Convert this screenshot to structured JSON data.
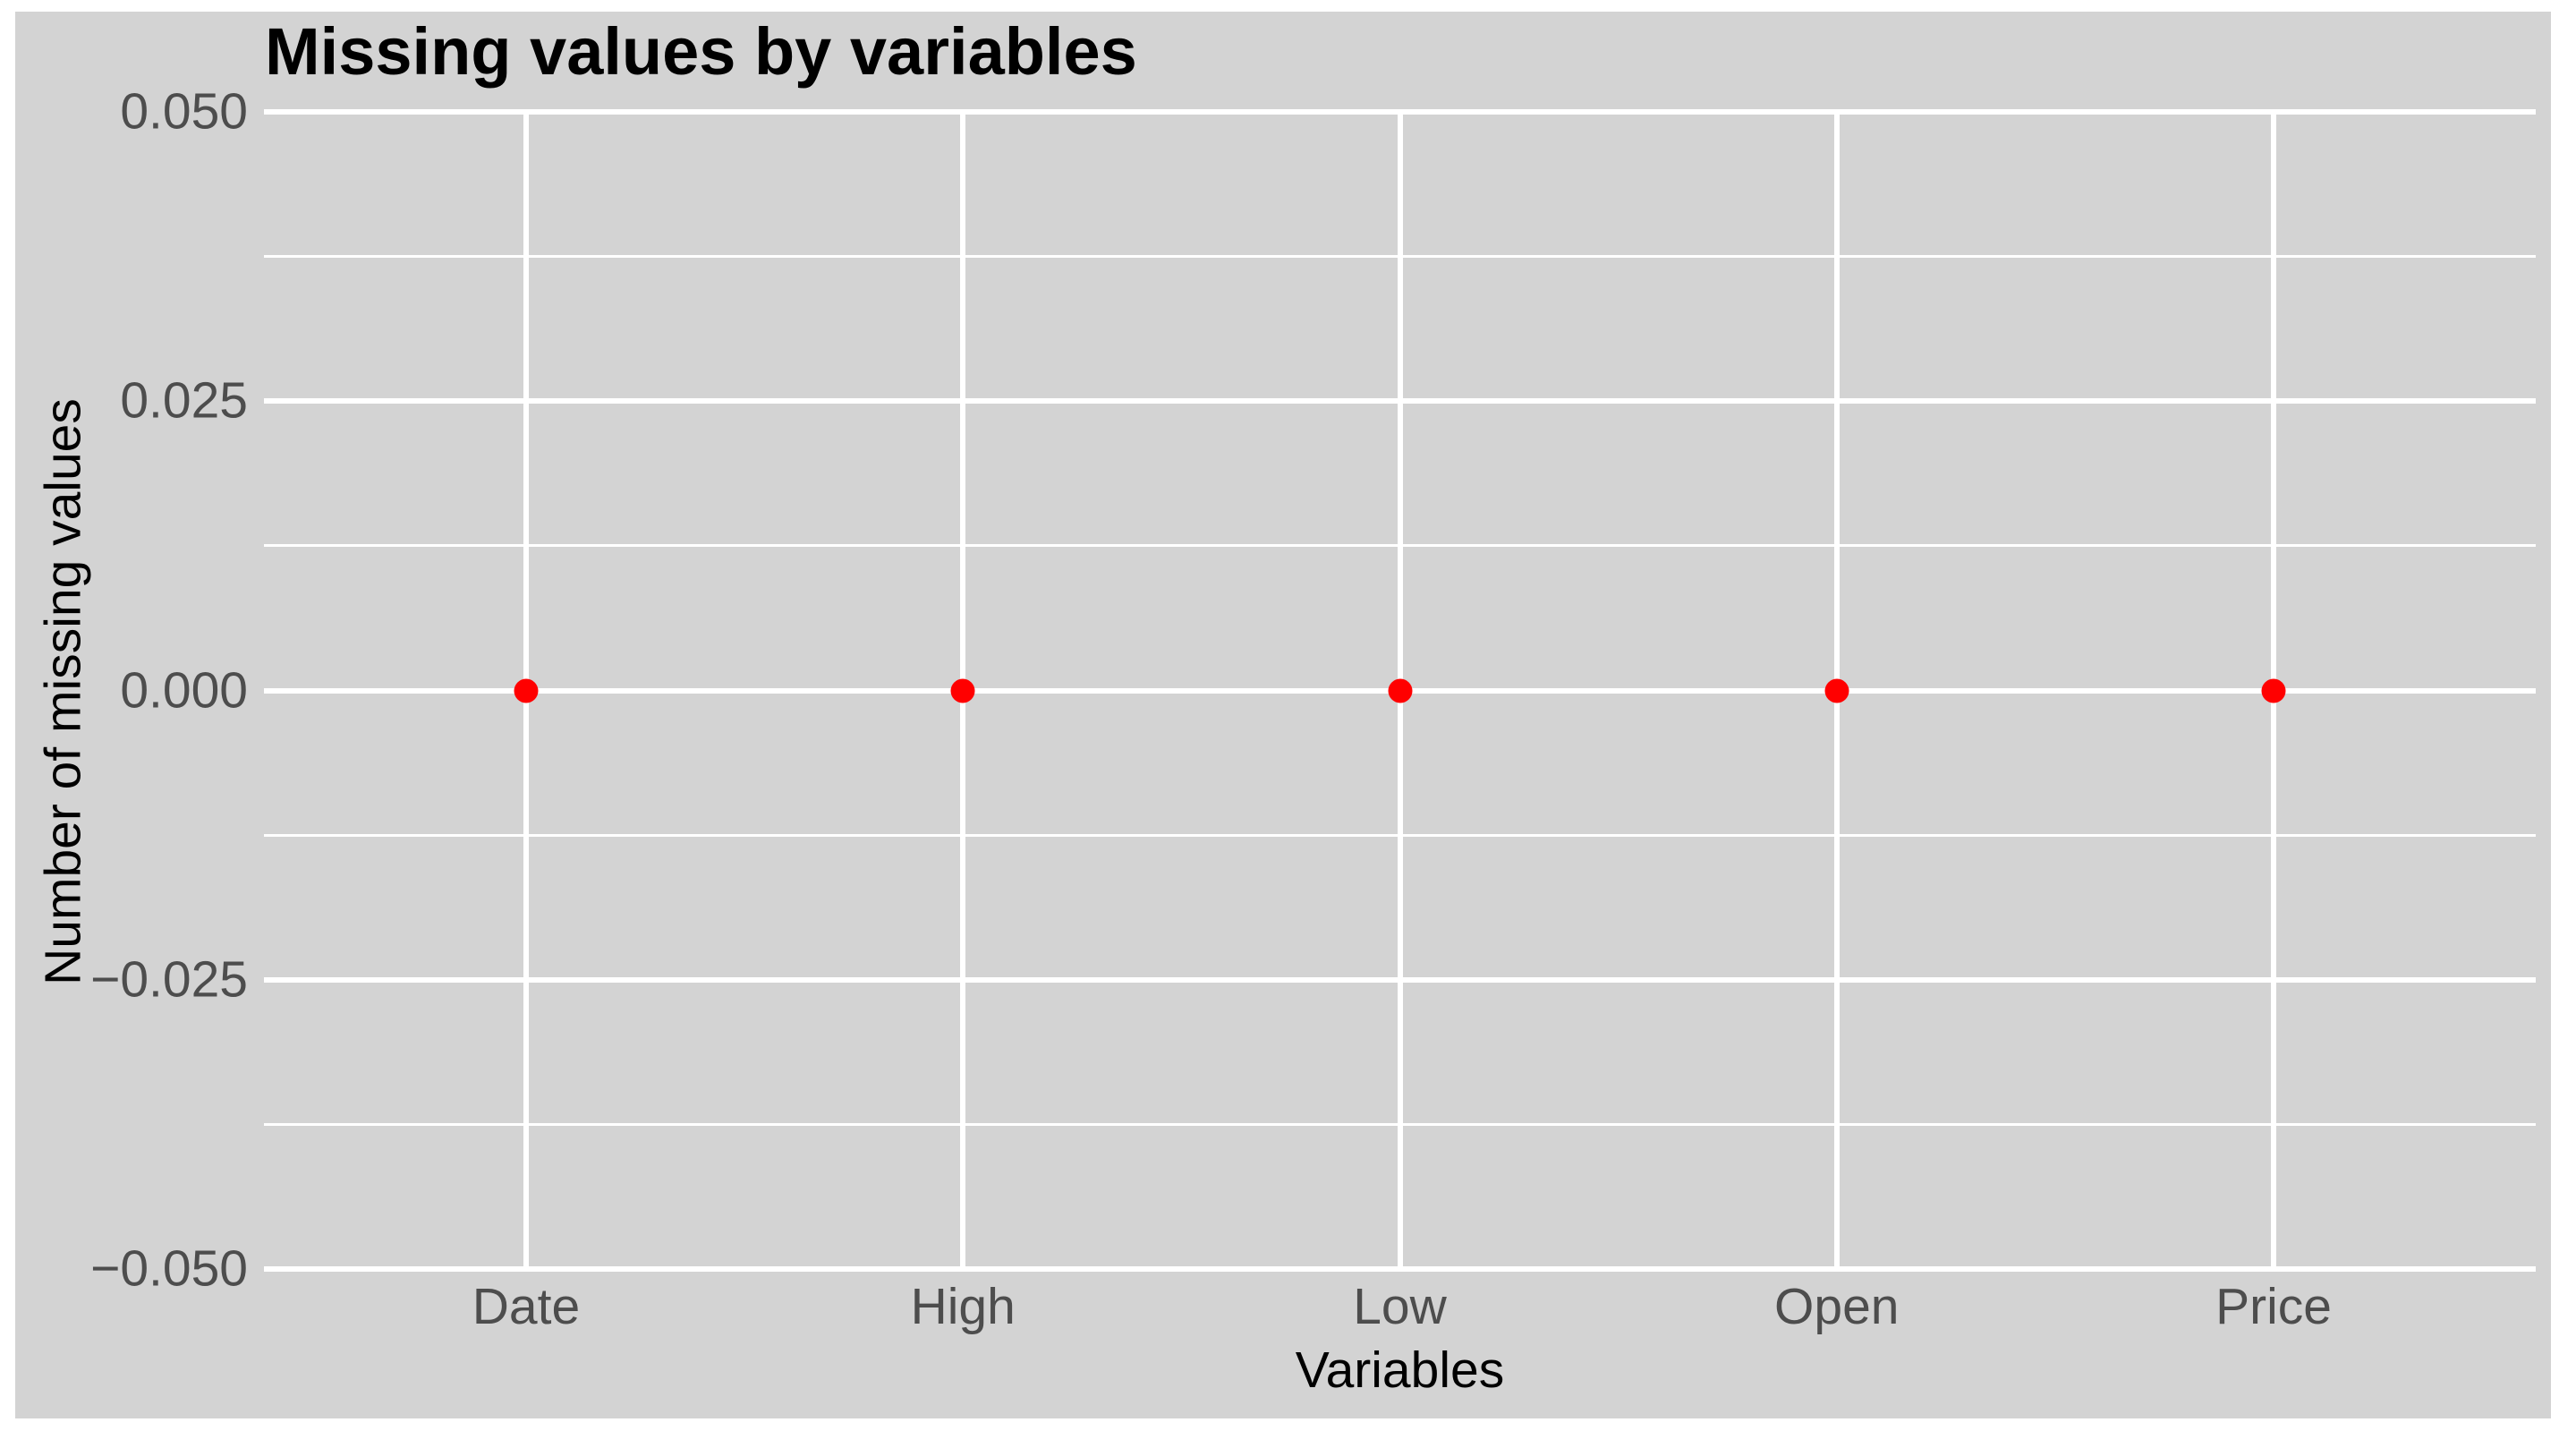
{
  "chart_data": {
    "type": "scatter",
    "title": "Missing values by variables",
    "xlabel": "Variables",
    "ylabel": "Number of missing values",
    "categories": [
      "Date",
      "High",
      "Low",
      "Open",
      "Price"
    ],
    "values": [
      0,
      0,
      0,
      0,
      0
    ],
    "ylim": [
      -0.05,
      0.05
    ],
    "yticks": [
      {
        "label": "0.050",
        "value": 0.05
      },
      {
        "label": "0.025",
        "value": 0.025
      },
      {
        "label": "0.000",
        "value": 0.0
      },
      {
        "label": "−0.025",
        "value": -0.025
      },
      {
        "label": "−0.050",
        "value": -0.05
      }
    ],
    "yminor": [
      0.0375,
      0.0125,
      -0.0125,
      -0.0375
    ],
    "grid": "major-and-minor-horizontal, major-vertical",
    "legend": "none",
    "colors": {
      "background": "#d3d3d3",
      "gridline": "#ffffff",
      "tick_text": "#4d4d4d",
      "title_text": "#000000",
      "axis_title_text": "#000000",
      "point": "#ff0000"
    }
  }
}
